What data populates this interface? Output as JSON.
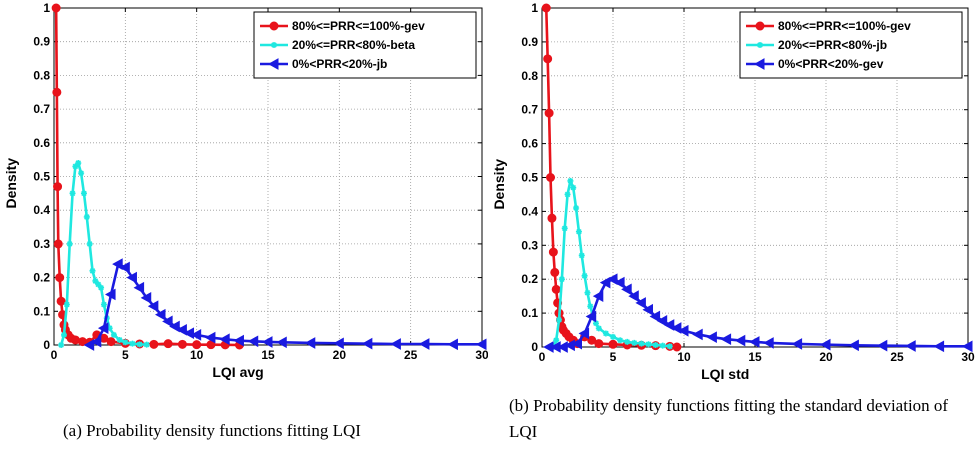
{
  "chart_data": [
    {
      "type": "line",
      "xlabel": "LQI avg",
      "ylabel": "Density",
      "xlim": [
        0,
        30
      ],
      "ylim": [
        0,
        1
      ],
      "xticks": [
        0,
        5,
        10,
        15,
        20,
        25,
        30
      ],
      "yticks": [
        0,
        0.1,
        0.2,
        0.3,
        0.4,
        0.5,
        0.6,
        0.7,
        0.8,
        0.9,
        1
      ],
      "grid": true,
      "legend_position": "top-right",
      "series": [
        {
          "name": "80%<=PRR<=100%-gev",
          "color": "#e8131b",
          "marker": "circle",
          "points": [
            [
              0.15,
              1.0
            ],
            [
              0.2,
              0.75
            ],
            [
              0.25,
              0.47
            ],
            [
              0.3,
              0.3
            ],
            [
              0.4,
              0.2
            ],
            [
              0.5,
              0.13
            ],
            [
              0.6,
              0.09
            ],
            [
              0.7,
              0.06
            ],
            [
              0.8,
              0.045
            ],
            [
              1.0,
              0.03
            ],
            [
              1.2,
              0.02
            ],
            [
              1.5,
              0.015
            ],
            [
              2.0,
              0.01
            ],
            [
              2.5,
              0.008
            ],
            [
              3.0,
              0.03
            ],
            [
              3.5,
              0.02
            ],
            [
              4.0,
              0.01
            ],
            [
              5,
              0.005
            ],
            [
              6,
              0.003
            ],
            [
              7,
              0.002
            ],
            [
              8,
              0.004
            ],
            [
              9,
              0.002
            ],
            [
              10,
              0.001
            ],
            [
              11,
              0.001
            ],
            [
              12,
              0.0005
            ],
            [
              13,
              0.0
            ]
          ]
        },
        {
          "name": "20%<=PRR<80%-beta",
          "color": "#1fe8e0",
          "marker": "star",
          "points": [
            [
              0.5,
              0.0
            ],
            [
              0.7,
              0.03
            ],
            [
              0.9,
              0.12
            ],
            [
              1.1,
              0.3
            ],
            [
              1.3,
              0.45
            ],
            [
              1.5,
              0.53
            ],
            [
              1.7,
              0.54
            ],
            [
              1.9,
              0.51
            ],
            [
              2.1,
              0.45
            ],
            [
              2.3,
              0.38
            ],
            [
              2.5,
              0.3
            ],
            [
              2.7,
              0.22
            ],
            [
              2.9,
              0.19
            ],
            [
              3.1,
              0.18
            ],
            [
              3.3,
              0.17
            ],
            [
              3.5,
              0.12
            ],
            [
              3.7,
              0.08
            ],
            [
              3.9,
              0.05
            ],
            [
              4.2,
              0.03
            ],
            [
              4.6,
              0.015
            ],
            [
              5.0,
              0.008
            ],
            [
              5.5,
              0.004
            ],
            [
              6.0,
              0.002
            ],
            [
              6.5,
              0.001
            ]
          ]
        },
        {
          "name": "0%<PRR<20%-jb",
          "color": "#1a1ae0",
          "marker": "triangle-left",
          "points": [
            [
              2.5,
              0.0
            ],
            [
              3.0,
              0.01
            ],
            [
              3.5,
              0.05
            ],
            [
              4.0,
              0.15
            ],
            [
              4.5,
              0.24
            ],
            [
              5.0,
              0.23
            ],
            [
              5.5,
              0.2
            ],
            [
              6.0,
              0.17
            ],
            [
              6.5,
              0.14
            ],
            [
              7.0,
              0.115
            ],
            [
              7.5,
              0.09
            ],
            [
              8.0,
              0.07
            ],
            [
              8.5,
              0.055
            ],
            [
              9.0,
              0.045
            ],
            [
              9.5,
              0.035
            ],
            [
              10,
              0.03
            ],
            [
              11,
              0.022
            ],
            [
              12,
              0.017
            ],
            [
              13,
              0.013
            ],
            [
              14,
              0.011
            ],
            [
              15,
              0.009
            ],
            [
              16,
              0.008
            ],
            [
              18,
              0.006
            ],
            [
              20,
              0.005
            ],
            [
              22,
              0.004
            ],
            [
              24,
              0.003
            ],
            [
              26,
              0.003
            ],
            [
              28,
              0.002
            ],
            [
              30,
              0.002
            ]
          ]
        }
      ]
    },
    {
      "type": "line",
      "xlabel": "LQI std",
      "ylabel": "Density",
      "xlim": [
        0,
        30
      ],
      "ylim": [
        0,
        1
      ],
      "xticks": [
        0,
        5,
        10,
        15,
        20,
        25,
        30
      ],
      "yticks": [
        0,
        0.1,
        0.2,
        0.3,
        0.4,
        0.5,
        0.6,
        0.7,
        0.8,
        0.9,
        1
      ],
      "grid": true,
      "legend_position": "top-right",
      "series": [
        {
          "name": "80%<=PRR<=100%-gev",
          "color": "#e8131b",
          "marker": "circle",
          "points": [
            [
              0.3,
              1.0
            ],
            [
              0.4,
              0.85
            ],
            [
              0.5,
              0.69
            ],
            [
              0.6,
              0.5
            ],
            [
              0.7,
              0.38
            ],
            [
              0.8,
              0.28
            ],
            [
              0.9,
              0.22
            ],
            [
              1.0,
              0.17
            ],
            [
              1.1,
              0.13
            ],
            [
              1.2,
              0.1
            ],
            [
              1.3,
              0.08
            ],
            [
              1.4,
              0.06
            ],
            [
              1.5,
              0.05
            ],
            [
              1.7,
              0.04
            ],
            [
              1.9,
              0.03
            ],
            [
              2.2,
              0.02
            ],
            [
              2.5,
              0.01
            ],
            [
              3.0,
              0.03
            ],
            [
              3.5,
              0.02
            ],
            [
              4.0,
              0.01
            ],
            [
              5,
              0.008
            ],
            [
              6,
              0.006
            ],
            [
              7,
              0.005
            ],
            [
              8,
              0.004
            ],
            [
              9,
              0.002
            ],
            [
              9.5,
              0.0
            ]
          ]
        },
        {
          "name": "20%<=PRR<80%-jb",
          "color": "#1fe8e0",
          "marker": "star",
          "points": [
            [
              0.8,
              0.0
            ],
            [
              1.0,
              0.02
            ],
            [
              1.2,
              0.08
            ],
            [
              1.4,
              0.2
            ],
            [
              1.6,
              0.35
            ],
            [
              1.8,
              0.45
            ],
            [
              2.0,
              0.49
            ],
            [
              2.2,
              0.47
            ],
            [
              2.4,
              0.41
            ],
            [
              2.6,
              0.34
            ],
            [
              2.8,
              0.27
            ],
            [
              3.0,
              0.21
            ],
            [
              3.2,
              0.16
            ],
            [
              3.4,
              0.12
            ],
            [
              3.6,
              0.09
            ],
            [
              3.8,
              0.07
            ],
            [
              4.0,
              0.055
            ],
            [
              4.5,
              0.04
            ],
            [
              5.0,
              0.03
            ],
            [
              5.5,
              0.02
            ],
            [
              6.0,
              0.015
            ],
            [
              6.5,
              0.012
            ],
            [
              7.0,
              0.01
            ],
            [
              7.5,
              0.008
            ],
            [
              8.0,
              0.006
            ],
            [
              8.5,
              0.004
            ],
            [
              9.0,
              0.002
            ]
          ]
        },
        {
          "name": "0%<PRR<20%-gev",
          "color": "#1a1ae0",
          "marker": "triangle-left",
          "points": [
            [
              0.5,
              0.0
            ],
            [
              1.0,
              0.0
            ],
            [
              1.5,
              0.0
            ],
            [
              2.0,
              0.005
            ],
            [
              2.5,
              0.01
            ],
            [
              3.0,
              0.04
            ],
            [
              3.5,
              0.09
            ],
            [
              4.0,
              0.15
            ],
            [
              4.5,
              0.19
            ],
            [
              5.0,
              0.2
            ],
            [
              5.5,
              0.19
            ],
            [
              6.0,
              0.17
            ],
            [
              6.5,
              0.15
            ],
            [
              7.0,
              0.13
            ],
            [
              7.5,
              0.11
            ],
            [
              8.0,
              0.09
            ],
            [
              8.5,
              0.077
            ],
            [
              9.0,
              0.065
            ],
            [
              9.5,
              0.056
            ],
            [
              10,
              0.048
            ],
            [
              11,
              0.037
            ],
            [
              12,
              0.029
            ],
            [
              13,
              0.023
            ],
            [
              14,
              0.019
            ],
            [
              15,
              0.015
            ],
            [
              16,
              0.012
            ],
            [
              18,
              0.009
            ],
            [
              20,
              0.007
            ],
            [
              22,
              0.005
            ],
            [
              24,
              0.004
            ],
            [
              26,
              0.003
            ],
            [
              28,
              0.002
            ],
            [
              30,
              0.002
            ]
          ]
        }
      ]
    }
  ],
  "captions": [
    "(a) Probability density functions fitting LQI",
    "(b) Probability density functions fitting the standard deviation of LQI"
  ]
}
